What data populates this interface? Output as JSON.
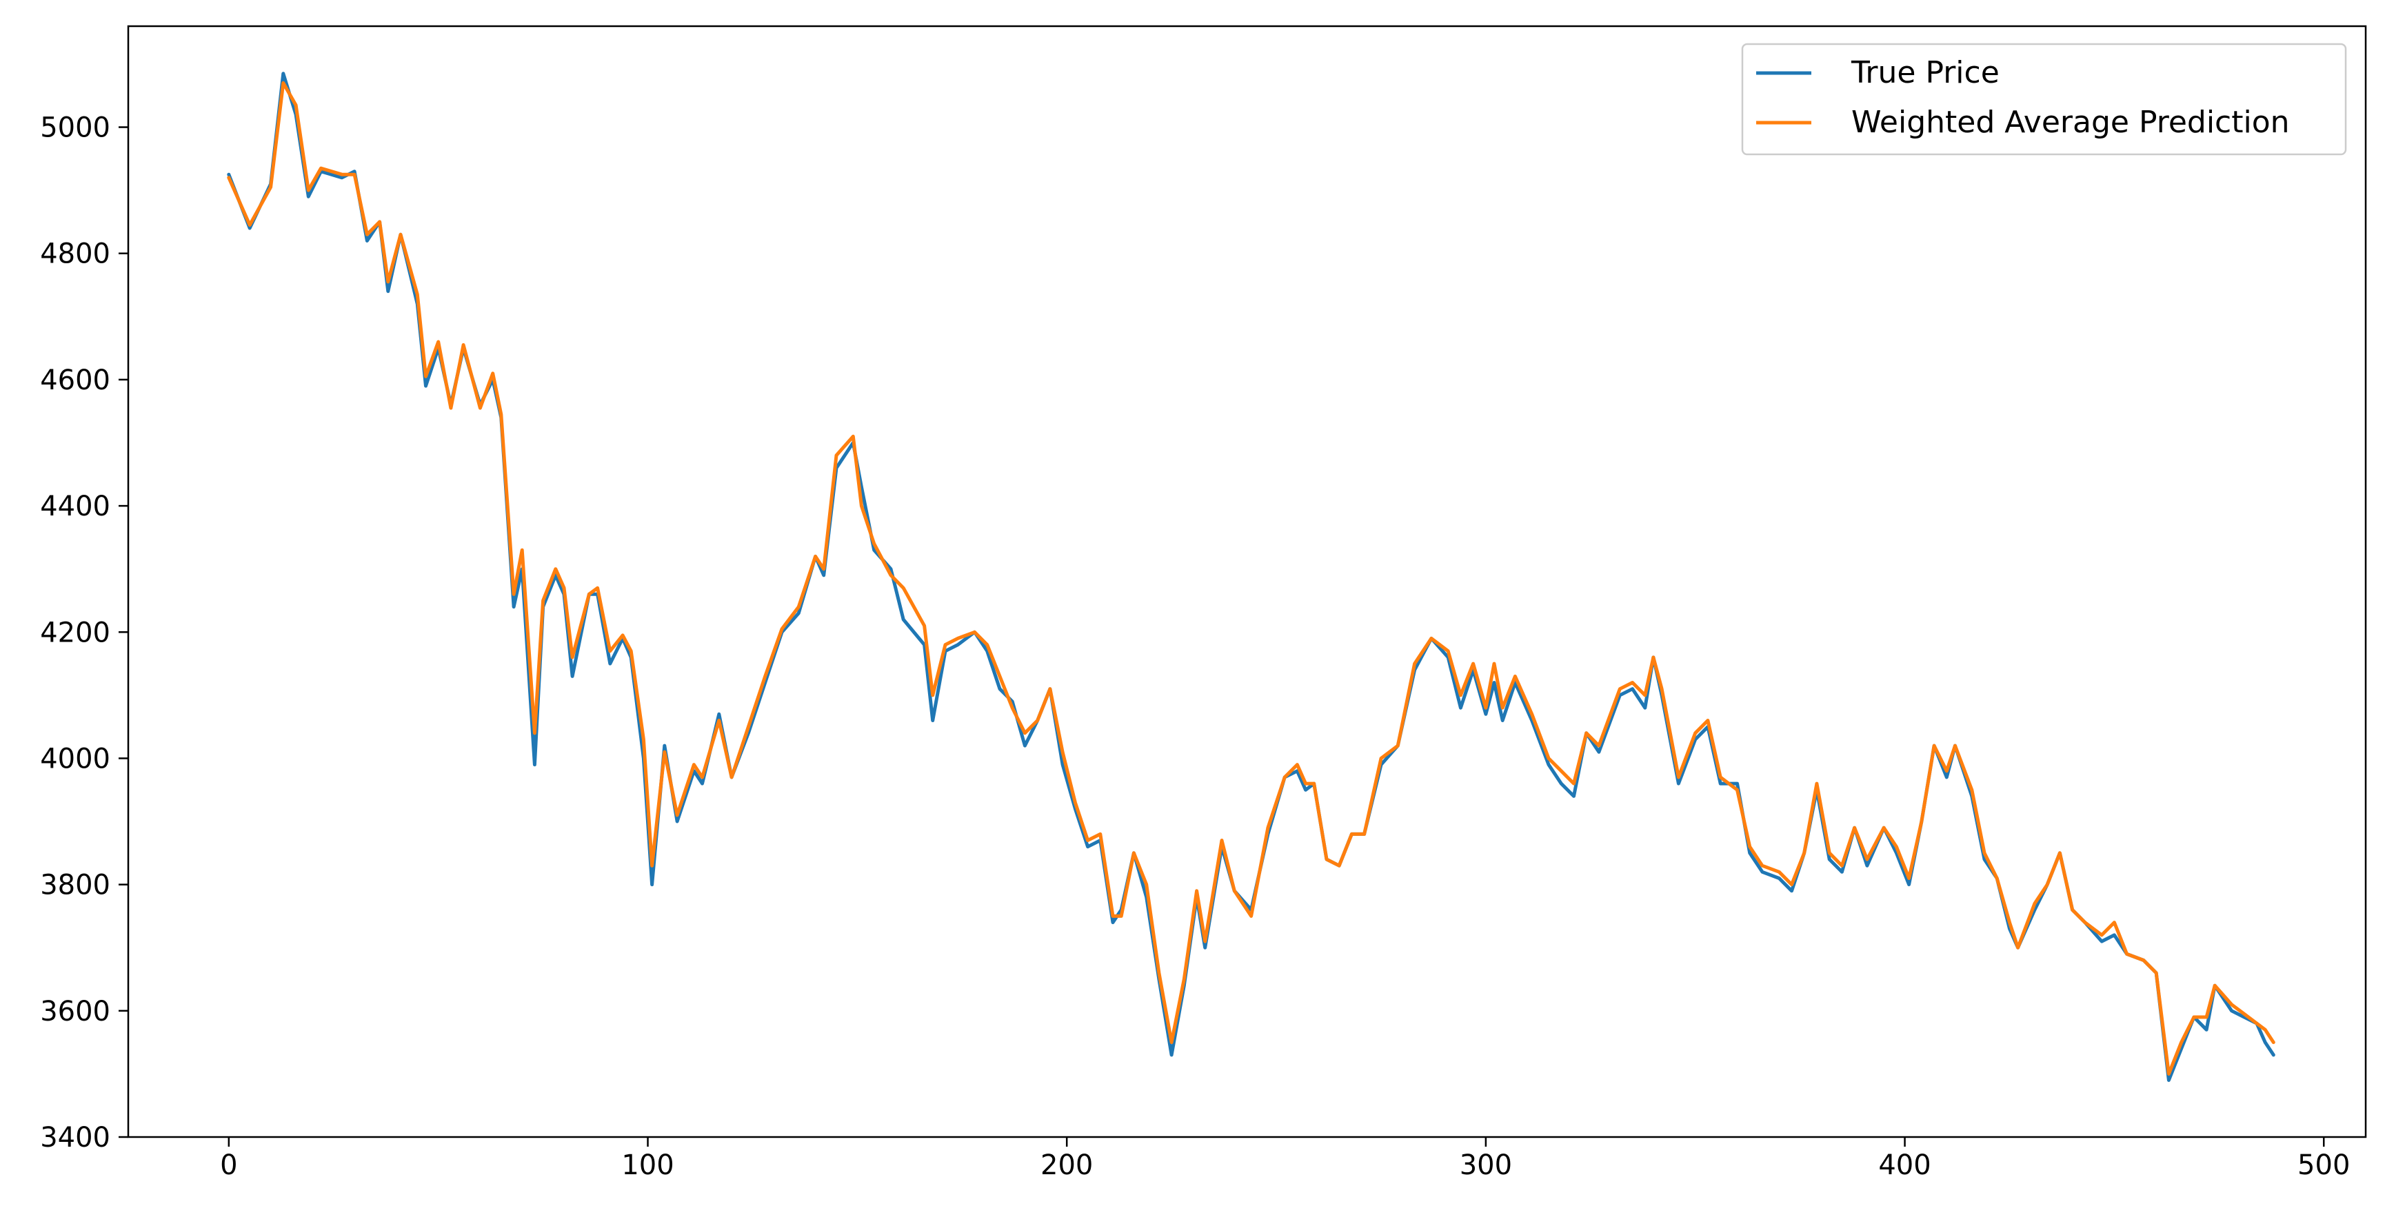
{
  "chart_data": {
    "type": "line",
    "title": "",
    "xlabel": "",
    "ylabel": "",
    "xlim": [
      -24,
      510
    ],
    "ylim": [
      3400,
      5160
    ],
    "x_ticks": [
      0,
      100,
      200,
      300,
      400,
      500
    ],
    "y_ticks": [
      3400,
      3600,
      3800,
      4000,
      4200,
      4400,
      4600,
      4800,
      5000
    ],
    "grid": false,
    "legend_position": "top-right",
    "series": [
      {
        "name": "True Price",
        "color": "#1f77b4",
        "points": [
          [
            0,
            4925
          ],
          [
            5,
            4840
          ],
          [
            10,
            4910
          ],
          [
            13,
            5085
          ],
          [
            16,
            5020
          ],
          [
            19,
            4890
          ],
          [
            22,
            4930
          ],
          [
            27,
            4920
          ],
          [
            30,
            4930
          ],
          [
            33,
            4820
          ],
          [
            36,
            4850
          ],
          [
            38,
            4740
          ],
          [
            41,
            4830
          ],
          [
            45,
            4720
          ],
          [
            47,
            4590
          ],
          [
            50,
            4650
          ],
          [
            53,
            4560
          ],
          [
            56,
            4650
          ],
          [
            60,
            4560
          ],
          [
            63,
            4600
          ],
          [
            65,
            4540
          ],
          [
            68,
            4240
          ],
          [
            70,
            4300
          ],
          [
            73,
            3990
          ],
          [
            75,
            4240
          ],
          [
            78,
            4290
          ],
          [
            80,
            4260
          ],
          [
            82,
            4130
          ],
          [
            86,
            4260
          ],
          [
            88,
            4260
          ],
          [
            91,
            4150
          ],
          [
            94,
            4190
          ],
          [
            96,
            4160
          ],
          [
            99,
            4000
          ],
          [
            101,
            3800
          ],
          [
            104,
            4020
          ],
          [
            107,
            3900
          ],
          [
            111,
            3980
          ],
          [
            113,
            3960
          ],
          [
            117,
            4070
          ],
          [
            120,
            3970
          ],
          [
            124,
            4040
          ],
          [
            128,
            4120
          ],
          [
            132,
            4200
          ],
          [
            136,
            4230
          ],
          [
            140,
            4320
          ],
          [
            142,
            4290
          ],
          [
            145,
            4460
          ],
          [
            149,
            4500
          ],
          [
            151,
            4430
          ],
          [
            154,
            4330
          ],
          [
            158,
            4300
          ],
          [
            161,
            4220
          ],
          [
            166,
            4180
          ],
          [
            168,
            4060
          ],
          [
            171,
            4170
          ],
          [
            174,
            4180
          ],
          [
            178,
            4200
          ],
          [
            181,
            4170
          ],
          [
            184,
            4110
          ],
          [
            187,
            4090
          ],
          [
            190,
            4020
          ],
          [
            193,
            4060
          ],
          [
            196,
            4110
          ],
          [
            199,
            3990
          ],
          [
            202,
            3920
          ],
          [
            205,
            3860
          ],
          [
            208,
            3870
          ],
          [
            211,
            3740
          ],
          [
            213,
            3760
          ],
          [
            216,
            3850
          ],
          [
            219,
            3780
          ],
          [
            222,
            3650
          ],
          [
            225,
            3530
          ],
          [
            228,
            3640
          ],
          [
            231,
            3780
          ],
          [
            233,
            3700
          ],
          [
            235,
            3780
          ],
          [
            237,
            3860
          ],
          [
            240,
            3790
          ],
          [
            244,
            3760
          ],
          [
            248,
            3880
          ],
          [
            252,
            3970
          ],
          [
            255,
            3980
          ],
          [
            257,
            3950
          ],
          [
            259,
            3960
          ],
          [
            262,
            3840
          ],
          [
            265,
            3830
          ],
          [
            268,
            3880
          ],
          [
            271,
            3880
          ],
          [
            275,
            3990
          ],
          [
            279,
            4020
          ],
          [
            283,
            4140
          ],
          [
            287,
            4190
          ],
          [
            291,
            4160
          ],
          [
            294,
            4080
          ],
          [
            297,
            4140
          ],
          [
            300,
            4070
          ],
          [
            302,
            4120
          ],
          [
            304,
            4060
          ],
          [
            307,
            4120
          ],
          [
            311,
            4060
          ],
          [
            315,
            3990
          ],
          [
            318,
            3960
          ],
          [
            321,
            3940
          ],
          [
            324,
            4040
          ],
          [
            327,
            4010
          ],
          [
            332,
            4100
          ],
          [
            335,
            4110
          ],
          [
            338,
            4080
          ],
          [
            340,
            4160
          ],
          [
            342,
            4100
          ],
          [
            346,
            3960
          ],
          [
            350,
            4030
          ],
          [
            353,
            4050
          ],
          [
            356,
            3960
          ],
          [
            360,
            3960
          ],
          [
            363,
            3850
          ],
          [
            366,
            3820
          ],
          [
            370,
            3810
          ],
          [
            373,
            3790
          ],
          [
            376,
            3850
          ],
          [
            379,
            3950
          ],
          [
            382,
            3840
          ],
          [
            385,
            3820
          ],
          [
            388,
            3890
          ],
          [
            391,
            3830
          ],
          [
            395,
            3890
          ],
          [
            398,
            3850
          ],
          [
            401,
            3800
          ],
          [
            404,
            3900
          ],
          [
            407,
            4020
          ],
          [
            410,
            3970
          ],
          [
            412,
            4020
          ],
          [
            416,
            3940
          ],
          [
            419,
            3840
          ],
          [
            422,
            3810
          ],
          [
            425,
            3730
          ],
          [
            427,
            3700
          ],
          [
            431,
            3760
          ],
          [
            434,
            3800
          ],
          [
            437,
            3850
          ],
          [
            440,
            3760
          ],
          [
            443,
            3740
          ],
          [
            447,
            3710
          ],
          [
            450,
            3720
          ],
          [
            453,
            3690
          ],
          [
            457,
            3680
          ],
          [
            460,
            3660
          ],
          [
            463,
            3490
          ],
          [
            466,
            3540
          ],
          [
            469,
            3590
          ],
          [
            472,
            3570
          ],
          [
            474,
            3640
          ],
          [
            478,
            3600
          ],
          [
            481,
            3590
          ],
          [
            484,
            3580
          ],
          [
            486,
            3550
          ],
          [
            488,
            3530
          ]
        ]
      },
      {
        "name": "Weighted Average Prediction",
        "color": "#ff7f0e",
        "points": [
          [
            0,
            4920
          ],
          [
            5,
            4845
          ],
          [
            10,
            4905
          ],
          [
            13,
            5070
          ],
          [
            16,
            5035
          ],
          [
            19,
            4900
          ],
          [
            22,
            4935
          ],
          [
            27,
            4925
          ],
          [
            30,
            4925
          ],
          [
            33,
            4830
          ],
          [
            36,
            4850
          ],
          [
            38,
            4755
          ],
          [
            41,
            4830
          ],
          [
            45,
            4735
          ],
          [
            47,
            4605
          ],
          [
            50,
            4660
          ],
          [
            53,
            4555
          ],
          [
            56,
            4655
          ],
          [
            60,
            4555
          ],
          [
            63,
            4610
          ],
          [
            65,
            4545
          ],
          [
            68,
            4260
          ],
          [
            70,
            4330
          ],
          [
            73,
            4040
          ],
          [
            75,
            4250
          ],
          [
            78,
            4300
          ],
          [
            80,
            4270
          ],
          [
            82,
            4160
          ],
          [
            86,
            4260
          ],
          [
            88,
            4270
          ],
          [
            91,
            4170
          ],
          [
            94,
            4195
          ],
          [
            96,
            4170
          ],
          [
            99,
            4030
          ],
          [
            101,
            3830
          ],
          [
            104,
            4010
          ],
          [
            107,
            3910
          ],
          [
            111,
            3990
          ],
          [
            113,
            3970
          ],
          [
            117,
            4060
          ],
          [
            120,
            3970
          ],
          [
            124,
            4050
          ],
          [
            128,
            4130
          ],
          [
            132,
            4205
          ],
          [
            136,
            4240
          ],
          [
            140,
            4320
          ],
          [
            142,
            4300
          ],
          [
            145,
            4480
          ],
          [
            149,
            4510
          ],
          [
            151,
            4400
          ],
          [
            154,
            4340
          ],
          [
            158,
            4290
          ],
          [
            161,
            4270
          ],
          [
            166,
            4210
          ],
          [
            168,
            4100
          ],
          [
            171,
            4180
          ],
          [
            174,
            4190
          ],
          [
            178,
            4200
          ],
          [
            181,
            4180
          ],
          [
            184,
            4130
          ],
          [
            187,
            4080
          ],
          [
            190,
            4040
          ],
          [
            193,
            4060
          ],
          [
            196,
            4110
          ],
          [
            199,
            4010
          ],
          [
            202,
            3930
          ],
          [
            205,
            3870
          ],
          [
            208,
            3880
          ],
          [
            211,
            3750
          ],
          [
            213,
            3750
          ],
          [
            216,
            3850
          ],
          [
            219,
            3800
          ],
          [
            222,
            3660
          ],
          [
            225,
            3550
          ],
          [
            228,
            3650
          ],
          [
            231,
            3790
          ],
          [
            233,
            3710
          ],
          [
            235,
            3790
          ],
          [
            237,
            3870
          ],
          [
            240,
            3790
          ],
          [
            244,
            3750
          ],
          [
            248,
            3890
          ],
          [
            252,
            3970
          ],
          [
            255,
            3990
          ],
          [
            257,
            3960
          ],
          [
            259,
            3960
          ],
          [
            262,
            3840
          ],
          [
            265,
            3830
          ],
          [
            268,
            3880
          ],
          [
            271,
            3880
          ],
          [
            275,
            4000
          ],
          [
            279,
            4020
          ],
          [
            283,
            4150
          ],
          [
            287,
            4190
          ],
          [
            291,
            4170
          ],
          [
            294,
            4100
          ],
          [
            297,
            4150
          ],
          [
            300,
            4080
          ],
          [
            302,
            4150
          ],
          [
            304,
            4080
          ],
          [
            307,
            4130
          ],
          [
            311,
            4070
          ],
          [
            315,
            4000
          ],
          [
            318,
            3980
          ],
          [
            321,
            3960
          ],
          [
            324,
            4040
          ],
          [
            327,
            4020
          ],
          [
            332,
            4110
          ],
          [
            335,
            4120
          ],
          [
            338,
            4100
          ],
          [
            340,
            4160
          ],
          [
            342,
            4110
          ],
          [
            346,
            3970
          ],
          [
            350,
            4040
          ],
          [
            353,
            4060
          ],
          [
            356,
            3970
          ],
          [
            360,
            3950
          ],
          [
            363,
            3860
          ],
          [
            366,
            3830
          ],
          [
            370,
            3820
          ],
          [
            373,
            3800
          ],
          [
            376,
            3850
          ],
          [
            379,
            3960
          ],
          [
            382,
            3850
          ],
          [
            385,
            3830
          ],
          [
            388,
            3890
          ],
          [
            391,
            3840
          ],
          [
            395,
            3890
          ],
          [
            398,
            3860
          ],
          [
            401,
            3810
          ],
          [
            404,
            3900
          ],
          [
            407,
            4020
          ],
          [
            410,
            3980
          ],
          [
            412,
            4020
          ],
          [
            416,
            3950
          ],
          [
            419,
            3850
          ],
          [
            422,
            3810
          ],
          [
            425,
            3740
          ],
          [
            427,
            3700
          ],
          [
            431,
            3770
          ],
          [
            434,
            3800
          ],
          [
            437,
            3850
          ],
          [
            440,
            3760
          ],
          [
            443,
            3740
          ],
          [
            447,
            3720
          ],
          [
            450,
            3740
          ],
          [
            453,
            3690
          ],
          [
            457,
            3680
          ],
          [
            460,
            3660
          ],
          [
            463,
            3500
          ],
          [
            466,
            3550
          ],
          [
            469,
            3590
          ],
          [
            472,
            3590
          ],
          [
            474,
            3640
          ],
          [
            478,
            3610
          ],
          [
            481,
            3595
          ],
          [
            484,
            3580
          ],
          [
            486,
            3570
          ],
          [
            488,
            3550
          ]
        ]
      }
    ]
  }
}
